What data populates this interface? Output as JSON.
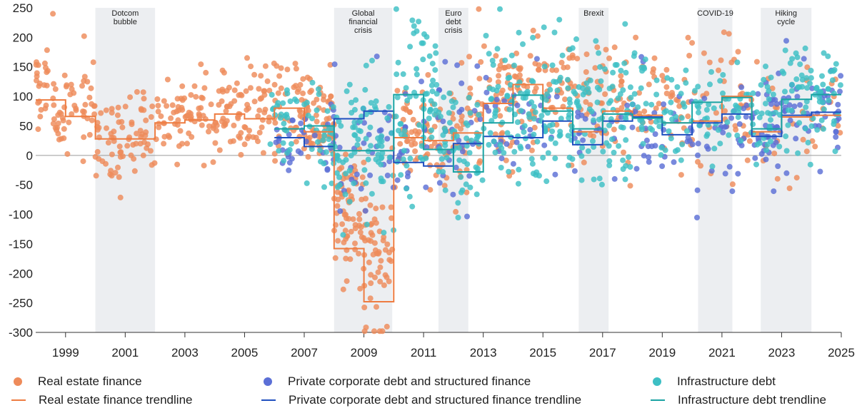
{
  "chart_data": {
    "type": "scatter",
    "title": "",
    "xlabel": "",
    "ylabel": "",
    "xlim": [
      1998,
      2025
    ],
    "ylim": [
      -300,
      250
    ],
    "x_ticks": [
      {
        "value": 1999,
        "label": "1999"
      },
      {
        "value": 2001,
        "label": "2001"
      },
      {
        "value": 2003,
        "label": "2003"
      },
      {
        "value": 2005,
        "label": "2005"
      },
      {
        "value": 2007,
        "label": "2007"
      },
      {
        "value": 2009,
        "label": "2009"
      },
      {
        "value": 2011,
        "label": "2011"
      },
      {
        "value": 2013,
        "label": "2013"
      },
      {
        "value": 2015,
        "label": "2015"
      },
      {
        "value": 2017,
        "label": "2017"
      },
      {
        "value": 2019,
        "label": "2019"
      },
      {
        "value": 2021,
        "label": "2021"
      },
      {
        "value": 2023,
        "label": "2023"
      },
      {
        "value": 2025,
        "label": "2025"
      }
    ],
    "y_ticks": [
      {
        "value": 250,
        "label": "250"
      },
      {
        "value": 200,
        "label": "200"
      },
      {
        "value": 150,
        "label": "150"
      },
      {
        "value": 100,
        "label": "100"
      },
      {
        "value": 50,
        "label": "50"
      },
      {
        "value": 0,
        "label": "0"
      },
      {
        "value": -50,
        "label": "-50"
      },
      {
        "value": -100,
        "label": "-100"
      },
      {
        "value": -150,
        "label": "-150"
      },
      {
        "value": -200,
        "label": "-200"
      },
      {
        "value": -250,
        "label": "-250"
      },
      {
        "value": -300,
        "label": "-300"
      }
    ],
    "bands": [
      {
        "label": "Dotcom bubble",
        "lines": [
          "Dotcom",
          "bubble"
        ],
        "start": 2000.0,
        "end": 2002.0
      },
      {
        "label": "Global financial crisis",
        "lines": [
          "Global",
          "financial",
          "crisis"
        ],
        "start": 2008.0,
        "end": 2009.95
      },
      {
        "label": "Euro debt crisis",
        "lines": [
          "Euro",
          "debt",
          "crisis"
        ],
        "start": 2011.5,
        "end": 2012.5
      },
      {
        "label": "Brexit",
        "lines": [
          "Brexit"
        ],
        "start": 2016.2,
        "end": 2017.2
      },
      {
        "label": "COVID-19",
        "lines": [
          "COVID-19"
        ],
        "start": 2020.2,
        "end": 2021.35
      },
      {
        "label": "Hiking cycle",
        "lines": [
          "Hiking",
          "cycle"
        ],
        "start": 2022.3,
        "end": 2024.0
      }
    ],
    "series": [
      {
        "name": "Real estate finance",
        "color": "#ee8b5a",
        "point_seed": 11,
        "clusters": [
          {
            "x0": 1998.0,
            "x1": 1998.5,
            "n": 22,
            "y": 120,
            "sd": 30
          },
          {
            "x0": 1998.5,
            "x1": 1999.6,
            "n": 38,
            "y": 80,
            "sd": 45
          },
          {
            "x0": 1999.6,
            "x1": 2000.0,
            "n": 18,
            "y": 95,
            "sd": 35
          },
          {
            "x0": 2000.0,
            "x1": 2002.0,
            "n": 75,
            "y": 25,
            "sd": 38
          },
          {
            "x0": 2002.0,
            "x1": 2003.5,
            "n": 55,
            "y": 65,
            "sd": 35
          },
          {
            "x0": 2003.5,
            "x1": 2005.0,
            "n": 60,
            "y": 75,
            "sd": 40
          },
          {
            "x0": 2005.0,
            "x1": 2007.0,
            "n": 80,
            "y": 80,
            "sd": 45
          },
          {
            "x0": 2007.0,
            "x1": 2008.0,
            "n": 70,
            "y": 55,
            "sd": 35
          },
          {
            "x0": 2008.0,
            "x1": 2009.0,
            "n": 70,
            "y": -90,
            "sd": 60
          },
          {
            "x0": 2009.0,
            "x1": 2009.95,
            "n": 55,
            "y": -170,
            "sd": 80
          },
          {
            "x0": 2009.95,
            "x1": 2011.5,
            "n": 60,
            "y": 40,
            "sd": 45
          },
          {
            "x0": 2011.5,
            "x1": 2012.5,
            "n": 35,
            "y": 20,
            "sd": 60
          },
          {
            "x0": 2012.5,
            "x1": 2014.0,
            "n": 60,
            "y": 90,
            "sd": 55
          },
          {
            "x0": 2014.0,
            "x1": 2016.0,
            "n": 70,
            "y": 110,
            "sd": 45
          },
          {
            "x0": 2016.0,
            "x1": 2018.0,
            "n": 55,
            "y": 90,
            "sd": 50
          },
          {
            "x0": 2018.0,
            "x1": 2020.0,
            "n": 45,
            "y": 90,
            "sd": 55
          },
          {
            "x0": 2020.0,
            "x1": 2022.0,
            "n": 40,
            "y": 80,
            "sd": 55
          },
          {
            "x0": 2022.0,
            "x1": 2025.0,
            "n": 30,
            "y": 70,
            "sd": 55
          }
        ]
      },
      {
        "name": "Private corporate debt and structured finance",
        "color": "#5b6fd6",
        "point_seed": 23,
        "clusters": [
          {
            "x0": 2006.0,
            "x1": 2007.9,
            "n": 30,
            "y": 30,
            "sd": 25
          },
          {
            "x0": 2007.9,
            "x1": 2010.0,
            "n": 40,
            "y": 30,
            "sd": 60
          },
          {
            "x0": 2010.0,
            "x1": 2012.5,
            "n": 40,
            "y": 20,
            "sd": 55
          },
          {
            "x0": 2012.5,
            "x1": 2016.0,
            "n": 40,
            "y": 60,
            "sd": 45
          },
          {
            "x0": 2016.0,
            "x1": 2019.0,
            "n": 40,
            "y": 50,
            "sd": 45
          },
          {
            "x0": 2019.0,
            "x1": 2022.0,
            "n": 45,
            "y": 40,
            "sd": 40
          },
          {
            "x0": 2022.0,
            "x1": 2023.0,
            "n": 40,
            "y": 20,
            "sd": 50
          },
          {
            "x0": 2023.0,
            "x1": 2025.0,
            "n": 50,
            "y": 80,
            "sd": 40
          }
        ]
      },
      {
        "name": "Infrastructure debt",
        "color": "#3dbfc4",
        "point_seed": 37,
        "clusters": [
          {
            "x0": 2005.8,
            "x1": 2007.5,
            "n": 40,
            "y": 45,
            "sd": 45
          },
          {
            "x0": 2007.5,
            "x1": 2010.0,
            "n": 100,
            "y": 15,
            "sd": 60
          },
          {
            "x0": 2010.0,
            "x1": 2011.5,
            "n": 70,
            "y": 80,
            "sd": 70
          },
          {
            "x0": 2011.5,
            "x1": 2013.0,
            "n": 60,
            "y": 10,
            "sd": 55
          },
          {
            "x0": 2013.0,
            "x1": 2016.0,
            "n": 130,
            "y": 80,
            "sd": 60
          },
          {
            "x0": 2016.0,
            "x1": 2018.5,
            "n": 100,
            "y": 70,
            "sd": 55
          },
          {
            "x0": 2018.5,
            "x1": 2021.0,
            "n": 60,
            "y": 70,
            "sd": 45
          },
          {
            "x0": 2021.0,
            "x1": 2023.0,
            "n": 50,
            "y": 80,
            "sd": 50
          },
          {
            "x0": 2023.0,
            "x1": 2025.0,
            "n": 70,
            "y": 100,
            "sd": 45
          }
        ]
      }
    ],
    "trendlines": [
      {
        "name": "Real estate finance trendline",
        "color": "#ee7c41",
        "steps": [
          {
            "x0": 1998.0,
            "x1": 1999.0,
            "y": 94
          },
          {
            "x0": 1999.0,
            "x1": 2000.0,
            "y": 66
          },
          {
            "x0": 2000.0,
            "x1": 2002.0,
            "y": 28
          },
          {
            "x0": 2002.0,
            "x1": 2003.0,
            "y": 55
          },
          {
            "x0": 2003.0,
            "x1": 2004.0,
            "y": 60
          },
          {
            "x0": 2004.0,
            "x1": 2005.0,
            "y": 70
          },
          {
            "x0": 2005.0,
            "x1": 2006.0,
            "y": 62
          },
          {
            "x0": 2006.0,
            "x1": 2007.0,
            "y": 80
          },
          {
            "x0": 2007.0,
            "x1": 2008.0,
            "y": 40
          },
          {
            "x0": 2008.0,
            "x1": 2009.0,
            "y": -158
          },
          {
            "x0": 2009.0,
            "x1": 2010.0,
            "y": -248
          },
          {
            "x0": 2010.0,
            "x1": 2011.0,
            "y": 30
          },
          {
            "x0": 2011.0,
            "x1": 2012.0,
            "y": 25
          },
          {
            "x0": 2012.0,
            "x1": 2013.0,
            "y": 38
          },
          {
            "x0": 2013.0,
            "x1": 2014.0,
            "y": 88
          },
          {
            "x0": 2014.0,
            "x1": 2015.0,
            "y": 120
          },
          {
            "x0": 2015.0,
            "x1": 2016.0,
            "y": 80
          },
          {
            "x0": 2016.0,
            "x1": 2017.0,
            "y": 40
          },
          {
            "x0": 2017.0,
            "x1": 2018.0,
            "y": 75
          },
          {
            "x0": 2018.0,
            "x1": 2019.0,
            "y": 68
          },
          {
            "x0": 2019.0,
            "x1": 2020.0,
            "y": 55
          },
          {
            "x0": 2020.0,
            "x1": 2021.0,
            "y": 58
          },
          {
            "x0": 2021.0,
            "x1": 2022.0,
            "y": 100
          },
          {
            "x0": 2022.0,
            "x1": 2023.0,
            "y": 40
          },
          {
            "x0": 2023.0,
            "x1": 2024.0,
            "y": 65
          },
          {
            "x0": 2024.0,
            "x1": 2025.0,
            "y": 68
          }
        ]
      },
      {
        "name": "Private corporate debt and structured finance trendline",
        "color": "#1f4fbf",
        "steps": [
          {
            "x0": 2006.0,
            "x1": 2007.0,
            "y": 30
          },
          {
            "x0": 2007.0,
            "x1": 2008.0,
            "y": 15
          },
          {
            "x0": 2008.0,
            "x1": 2009.0,
            "y": 62
          },
          {
            "x0": 2009.0,
            "x1": 2010.0,
            "y": 75
          },
          {
            "x0": 2010.0,
            "x1": 2011.0,
            "y": -12
          },
          {
            "x0": 2011.0,
            "x1": 2012.0,
            "y": -18
          },
          {
            "x0": 2012.0,
            "x1": 2013.0,
            "y": 20
          },
          {
            "x0": 2013.0,
            "x1": 2014.0,
            "y": 32
          },
          {
            "x0": 2014.0,
            "x1": 2015.0,
            "y": 30
          },
          {
            "x0": 2015.0,
            "x1": 2016.0,
            "y": 58
          },
          {
            "x0": 2016.0,
            "x1": 2017.0,
            "y": 18
          },
          {
            "x0": 2017.0,
            "x1": 2018.0,
            "y": 58
          },
          {
            "x0": 2018.0,
            "x1": 2019.0,
            "y": 65
          },
          {
            "x0": 2019.0,
            "x1": 2020.0,
            "y": 35
          },
          {
            "x0": 2020.0,
            "x1": 2021.0,
            "y": 55
          },
          {
            "x0": 2021.0,
            "x1": 2022.0,
            "y": 70
          },
          {
            "x0": 2022.0,
            "x1": 2023.0,
            "y": 32
          },
          {
            "x0": 2023.0,
            "x1": 2024.0,
            "y": 68
          },
          {
            "x0": 2024.0,
            "x1": 2025.0,
            "y": 73
          }
        ]
      },
      {
        "name": "Infrastructure debt trendline",
        "color": "#1aa3a3",
        "steps": [
          {
            "x0": 2006.0,
            "x1": 2007.0,
            "y": 45
          },
          {
            "x0": 2007.0,
            "x1": 2008.0,
            "y": 50
          },
          {
            "x0": 2008.0,
            "x1": 2010.0,
            "y": 8
          },
          {
            "x0": 2010.0,
            "x1": 2011.0,
            "y": 103
          },
          {
            "x0": 2011.0,
            "x1": 2012.0,
            "y": 10
          },
          {
            "x0": 2012.0,
            "x1": 2013.0,
            "y": -28
          },
          {
            "x0": 2013.0,
            "x1": 2014.0,
            "y": 55
          },
          {
            "x0": 2014.0,
            "x1": 2015.0,
            "y": 102
          },
          {
            "x0": 2015.0,
            "x1": 2016.0,
            "y": 75
          },
          {
            "x0": 2016.0,
            "x1": 2017.0,
            "y": 45
          },
          {
            "x0": 2017.0,
            "x1": 2018.0,
            "y": 70
          },
          {
            "x0": 2018.0,
            "x1": 2019.0,
            "y": 63
          },
          {
            "x0": 2019.0,
            "x1": 2020.0,
            "y": 55
          },
          {
            "x0": 2020.0,
            "x1": 2021.0,
            "y": 90
          },
          {
            "x0": 2021.0,
            "x1": 2022.0,
            "y": 98
          },
          {
            "x0": 2022.0,
            "x1": 2023.0,
            "y": 45
          },
          {
            "x0": 2023.0,
            "x1": 2024.0,
            "y": 95
          },
          {
            "x0": 2024.0,
            "x1": 2025.0,
            "y": 103
          }
        ]
      }
    ]
  },
  "legend": {
    "items": [
      {
        "label": "Real estate finance",
        "kind": "dot",
        "color": "#ee8b5a"
      },
      {
        "label": "Real estate finance trendline",
        "kind": "line",
        "color": "#ee7c41"
      },
      {
        "label": "Private corporate debt and structured finance",
        "kind": "dot",
        "color": "#5b6fd6"
      },
      {
        "label": "Private corporate debt and structured finance trendline",
        "kind": "line",
        "color": "#1f4fbf"
      },
      {
        "label": "Infrastructure debt",
        "kind": "dot",
        "color": "#3dbfc4"
      },
      {
        "label": "Infrastructure debt trendline",
        "kind": "line",
        "color": "#1aa3a3"
      }
    ]
  },
  "colors": {
    "band": "#eceef1",
    "zero_line": "#9a9a9a",
    "axis": "#333333"
  }
}
